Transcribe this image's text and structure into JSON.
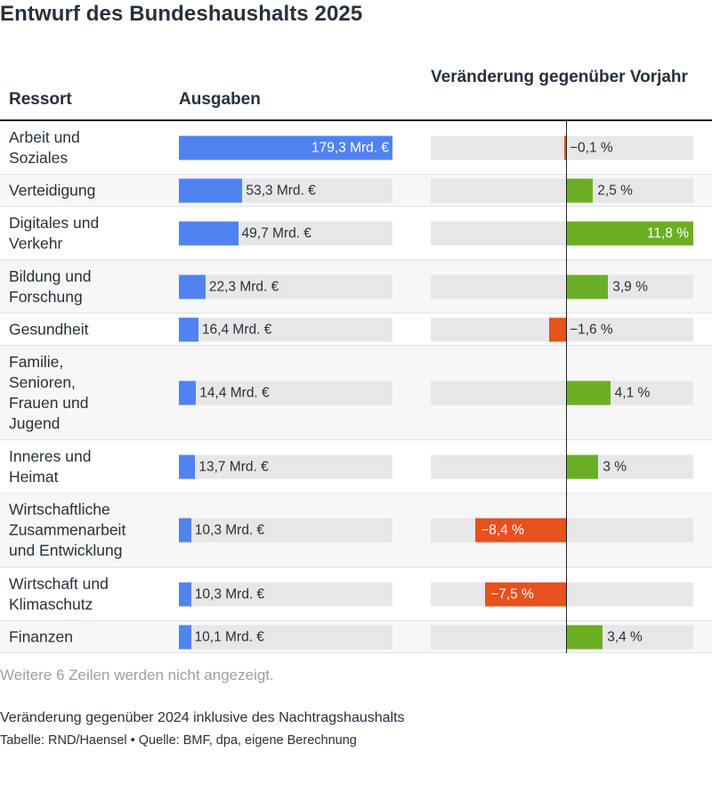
{
  "title": "Entwurf des Bundeshaushalts 2025",
  "columns": {
    "ressort": "Ressort",
    "ausgaben": "Ausgaben",
    "veraenderung": "Veränderung gegenüber Vorjahr"
  },
  "colors": {
    "spending": "#4f83f2",
    "positive": "#6aaf23",
    "negative": "#e8501e",
    "track": "#e7e7e7"
  },
  "chart_data": {
    "type": "table",
    "spending_max": 179.3,
    "change_range": [
      -8.4,
      11.8
    ],
    "rows": [
      {
        "ressort": "Arbeit und\nSoziales",
        "ausgaben": 179.3,
        "ausgaben_label": "179,3 Mrd. €",
        "veraenderung": -0.1,
        "veraenderung_label": "−0,1 %"
      },
      {
        "ressort": "Verteidigung",
        "ausgaben": 53.3,
        "ausgaben_label": "53,3 Mrd. €",
        "veraenderung": 2.5,
        "veraenderung_label": "2,5 %"
      },
      {
        "ressort": "Digitales und\nVerkehr",
        "ausgaben": 49.7,
        "ausgaben_label": "49,7 Mrd. €",
        "veraenderung": 11.8,
        "veraenderung_label": "11,8 %"
      },
      {
        "ressort": "Bildung und\nForschung",
        "ausgaben": 22.3,
        "ausgaben_label": "22,3 Mrd. €",
        "veraenderung": 3.9,
        "veraenderung_label": "3,9 %"
      },
      {
        "ressort": "Gesundheit",
        "ausgaben": 16.4,
        "ausgaben_label": "16,4 Mrd. €",
        "veraenderung": -1.6,
        "veraenderung_label": "−1,6 %"
      },
      {
        "ressort": "Familie,\nSenioren,\nFrauen und\nJugend",
        "ausgaben": 14.4,
        "ausgaben_label": "14,4 Mrd. €",
        "veraenderung": 4.1,
        "veraenderung_label": "4,1 %"
      },
      {
        "ressort": "Inneres und\nHeimat",
        "ausgaben": 13.7,
        "ausgaben_label": "13,7 Mrd. €",
        "veraenderung": 3,
        "veraenderung_label": "3 %"
      },
      {
        "ressort": "Wirtschaftliche\nZusammenarbeit\nund Entwicklung",
        "ausgaben": 10.3,
        "ausgaben_label": "10,3 Mrd. €",
        "veraenderung": -8.4,
        "veraenderung_label": "−8,4 %"
      },
      {
        "ressort": "Wirtschaft und\nKlimaschutz",
        "ausgaben": 10.3,
        "ausgaben_label": "10,3 Mrd. €",
        "veraenderung": -7.5,
        "veraenderung_label": "−7,5 %"
      },
      {
        "ressort": "Finanzen",
        "ausgaben": 10.1,
        "ausgaben_label": "10,1 Mrd. €",
        "veraenderung": 3.4,
        "veraenderung_label": "3,4 %"
      }
    ]
  },
  "footer": {
    "more_rows": "Weitere 6 Zeilen werden nicht angezeigt.",
    "caption": "Veränderung gegenüber 2024 inklusive des Nachtragshaushalts",
    "source": "Tabelle: RND/Haensel • Quelle: BMF, dpa, eigene Berechnung"
  }
}
